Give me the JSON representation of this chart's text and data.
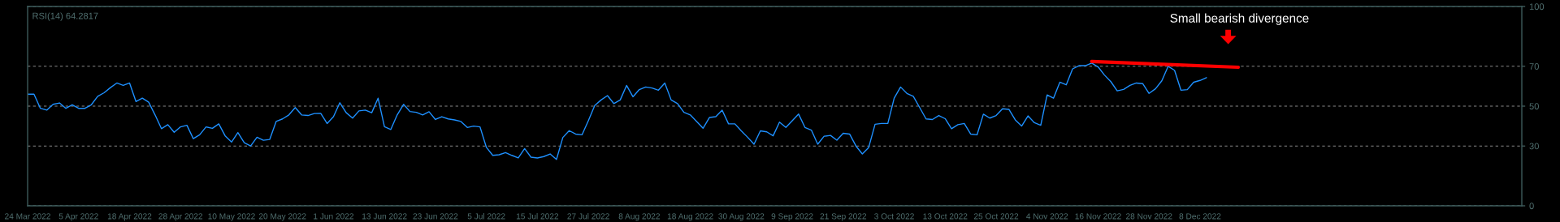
{
  "chart_data": {
    "type": "line",
    "annotations": [
      "RSI(14) 64.2817",
      "Small bearish divergence"
    ],
    "categories": [
      "24 Mar 2022",
      null,
      null,
      null,
      null,
      null,
      null,
      null,
      "5 Apr 2022",
      null,
      null,
      null,
      null,
      null,
      null,
      null,
      "18 Apr 2022",
      null,
      null,
      null,
      null,
      null,
      null,
      null,
      "28 Apr 2022",
      null,
      null,
      null,
      null,
      null,
      null,
      null,
      "10 May 2022",
      null,
      null,
      null,
      null,
      null,
      null,
      null,
      "20 May 2022",
      null,
      null,
      null,
      null,
      null,
      null,
      null,
      "1 Jun 2022",
      null,
      null,
      null,
      null,
      null,
      null,
      null,
      "13 Jun 2022",
      null,
      null,
      null,
      null,
      null,
      null,
      null,
      "23 Jun 2022",
      null,
      null,
      null,
      null,
      null,
      null,
      null,
      "5 Jul 2022",
      null,
      null,
      null,
      null,
      null,
      null,
      null,
      "15 Jul 2022",
      null,
      null,
      null,
      null,
      null,
      null,
      null,
      "27 Jul 2022",
      null,
      null,
      null,
      null,
      null,
      null,
      null,
      "8 Aug 2022",
      null,
      null,
      null,
      null,
      null,
      null,
      null,
      "18 Aug 2022",
      null,
      null,
      null,
      null,
      null,
      null,
      null,
      "30 Aug 2022",
      null,
      null,
      null,
      null,
      null,
      null,
      null,
      "9 Sep 2022",
      null,
      null,
      null,
      null,
      null,
      null,
      null,
      "21 Sep 2022",
      null,
      null,
      null,
      null,
      null,
      null,
      null,
      "3 Oct 2022",
      null,
      null,
      null,
      null,
      null,
      null,
      null,
      "13 Oct 2022",
      null,
      null,
      null,
      null,
      null,
      null,
      null,
      "25 Oct 2022",
      null,
      null,
      null,
      null,
      null,
      null,
      null,
      "4 Nov 2022",
      null,
      null,
      null,
      null,
      null,
      null,
      null,
      "16 Nov 2022",
      null,
      null,
      null,
      null,
      null,
      null,
      null,
      "28 Nov 2022",
      null,
      null,
      null,
      null,
      null,
      null,
      null,
      "8 Dec 2022",
      null,
      null,
      null,
      null,
      null,
      null,
      null,
      null,
      null,
      null,
      null,
      null,
      null,
      null,
      null,
      null,
      null,
      null,
      null,
      null,
      null,
      null,
      null,
      null,
      null,
      null,
      null,
      null,
      null,
      null,
      null,
      null,
      null,
      null,
      null,
      null,
      null,
      null,
      null,
      null,
      null,
      null,
      null,
      null,
      null,
      null,
      null,
      null,
      null,
      null
    ],
    "ylim": [
      0,
      100
    ],
    "yticks": [
      0,
      30,
      50,
      70,
      100
    ],
    "grid": "y",
    "series": [
      {
        "color": "#1e90ff",
        "values": [
          56,
          56,
          48.9,
          48,
          50.9,
          51.6,
          48.9,
          50.7,
          48.9,
          48.9,
          50.7,
          54.9,
          56.7,
          59.3,
          61.6,
          60.4,
          61.6,
          52.3,
          54,
          52,
          45.6,
          38.7,
          40.7,
          36.9,
          39.6,
          40.4,
          33.7,
          35.6,
          39.6,
          38.9,
          41.1,
          35.1,
          32,
          36.7,
          31.7,
          30,
          34.4,
          32.9,
          33.3,
          42.3,
          43.6,
          45.6,
          49.3,
          45.6,
          45.3,
          46.3,
          46.4,
          41.3,
          44.7,
          51.7,
          46.7,
          44,
          47.6,
          48,
          46.7,
          54,
          39.7,
          38.3,
          45.6,
          50.9,
          47.3,
          46.9,
          45.6,
          47.2,
          43.3,
          44.7,
          43.6,
          43.1,
          42.3,
          39.3,
          40,
          39.6,
          29.3,
          25.3,
          25.6,
          26.7,
          25.3,
          24,
          28.7,
          24.4,
          24,
          24.7,
          26,
          23.3,
          34.3,
          37.7,
          36,
          35.6,
          42.7,
          50.3,
          53.1,
          55.3,
          51.3,
          53.1,
          60.4,
          54.7,
          58.3,
          59.6,
          59.1,
          58,
          61.6,
          53.1,
          51.3,
          46.9,
          45.6,
          42.3,
          38.9,
          44.3,
          44.7,
          48,
          41.1,
          41.1,
          37.6,
          34.4,
          30.9,
          37.6,
          37.1,
          35.1,
          42,
          39.3,
          42.7,
          46,
          39.3,
          38,
          30.9,
          34.9,
          35.3,
          32.9,
          36.4,
          36,
          30,
          26,
          29.3,
          40.9,
          41.3,
          41.3,
          54,
          59.6,
          56.4,
          54.9,
          49.3,
          43.6,
          43.3,
          45.3,
          43.7,
          38.7,
          40.7,
          41.3,
          36,
          35.6,
          46,
          44,
          45.3,
          48.7,
          48.4,
          43.1,
          40,
          45.1,
          41.7,
          40.4,
          55.6,
          54,
          62,
          60.7,
          68.7,
          70.3,
          70.3,
          71.6,
          69.7,
          65.6,
          62.3,
          57.7,
          58.4,
          60.4,
          61.6,
          61.3,
          56.4,
          58.7,
          62.7,
          70,
          68,
          58,
          58.3,
          62,
          62.9,
          64.3,
          null,
          null,
          null,
          null,
          null,
          null,
          null,
          null,
          null,
          null,
          null,
          null,
          null,
          null,
          null,
          null,
          null,
          null,
          null,
          null,
          null,
          null,
          null,
          null,
          null,
          null,
          null,
          null,
          null,
          null,
          null,
          null,
          null,
          null,
          null,
          null,
          null,
          null,
          null,
          null,
          null,
          null,
          null,
          null,
          null,
          null,
          null,
          null,
          null
        ]
      },
      {
        "color": "#ff0000",
        "values": [
          null,
          null,
          null,
          null,
          null,
          null,
          null,
          null,
          null,
          null,
          null,
          null,
          null,
          null,
          null,
          null,
          null,
          null,
          null,
          null,
          null,
          null,
          null,
          null,
          null,
          null,
          null,
          null,
          null,
          null,
          null,
          null,
          null,
          null,
          null,
          null,
          null,
          null,
          null,
          null,
          null,
          null,
          null,
          null,
          null,
          null,
          null,
          null,
          null,
          null,
          null,
          null,
          null,
          null,
          null,
          null,
          null,
          null,
          null,
          null,
          null,
          null,
          null,
          null,
          null,
          null,
          null,
          null,
          null,
          null,
          null,
          null,
          null,
          null,
          null,
          null,
          null,
          null,
          null,
          null,
          null,
          null,
          null,
          null,
          null,
          null,
          null,
          null,
          null,
          null,
          null,
          null,
          null,
          null,
          null,
          null,
          null,
          null,
          null,
          null,
          null,
          null,
          null,
          null,
          null,
          null,
          null,
          null,
          null,
          null,
          null,
          null,
          null,
          null,
          null,
          null,
          null,
          null,
          null,
          null,
          null,
          null,
          null,
          null,
          null,
          null,
          null,
          null,
          null,
          null,
          null,
          null,
          null,
          null,
          null,
          null,
          null,
          null,
          null,
          null,
          null,
          null,
          null,
          null,
          null,
          null,
          null,
          null,
          null,
          null,
          null,
          null,
          null,
          null,
          null,
          null,
          null,
          null,
          null,
          null,
          null,
          null,
          null,
          null,
          null,
          null,
          null,
          72.4,
          null,
          null,
          null,
          null,
          null,
          null,
          null,
          null,
          null,
          null,
          null,
          null,
          null,
          null,
          null,
          null,
          null,
          null,
          null,
          null,
          null,
          null,
          69.5,
          null,
          null,
          null,
          null,
          null,
          null,
          null,
          null,
          null,
          null,
          null,
          null,
          null,
          null,
          null,
          null,
          null,
          null,
          null,
          null,
          null,
          null,
          null,
          null,
          null,
          null,
          null,
          null,
          null,
          null,
          null,
          null,
          null,
          null,
          null,
          null,
          null,
          null,
          null,
          null,
          null,
          null,
          null,
          null
        ]
      }
    ]
  }
}
